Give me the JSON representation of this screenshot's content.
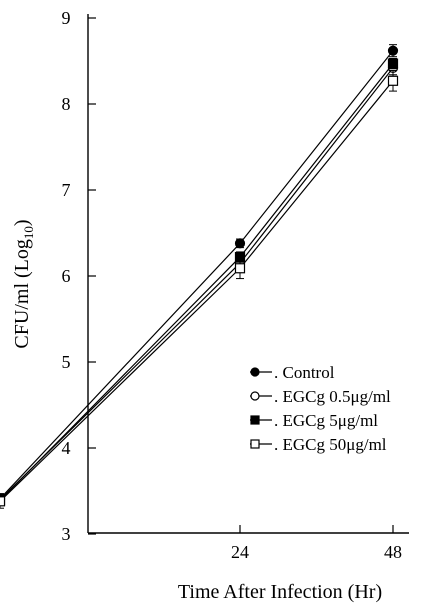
{
  "chart_data": {
    "type": "line",
    "ylabel_main": "CFU/ml (Log",
    "ylabel_sub": "10",
    "ylabel_close": ")",
    "xlabel": "Time After Infection (Hr)",
    "x_values": [
      0,
      24,
      48
    ],
    "x_tick_labels": [
      "24",
      "48"
    ],
    "y_ticks": [
      3,
      4,
      5,
      6,
      7,
      8,
      9
    ],
    "y_tick_labels": [
      "3",
      "4",
      "5",
      "6",
      "7",
      "8",
      "9"
    ],
    "xlim": [
      0,
      48
    ],
    "ylim": [
      3,
      9
    ],
    "grid": false,
    "legend_position": "lower-right",
    "series": [
      {
        "name": ". Control",
        "marker": "filled-circle",
        "values": [
          3.41,
          6.38,
          8.62
        ],
        "errors": [
          0.06,
          0.05,
          0.07
        ]
      },
      {
        "name": ". EGCg 0.5μg/ml",
        "marker": "open-circle",
        "values": [
          3.4,
          6.15,
          8.42
        ],
        "errors": [
          0.06,
          0.08,
          0.08
        ]
      },
      {
        "name": ". EGCg 5μg/ml",
        "marker": "filled-square",
        "values": [
          3.39,
          6.22,
          8.47
        ],
        "errors": [
          0.05,
          0.06,
          0.06
        ]
      },
      {
        "name": ". EGCg 50μg/ml",
        "marker": "open-square",
        "values": [
          3.38,
          6.09,
          8.27
        ],
        "errors": [
          0.08,
          0.12,
          0.12
        ]
      }
    ]
  }
}
